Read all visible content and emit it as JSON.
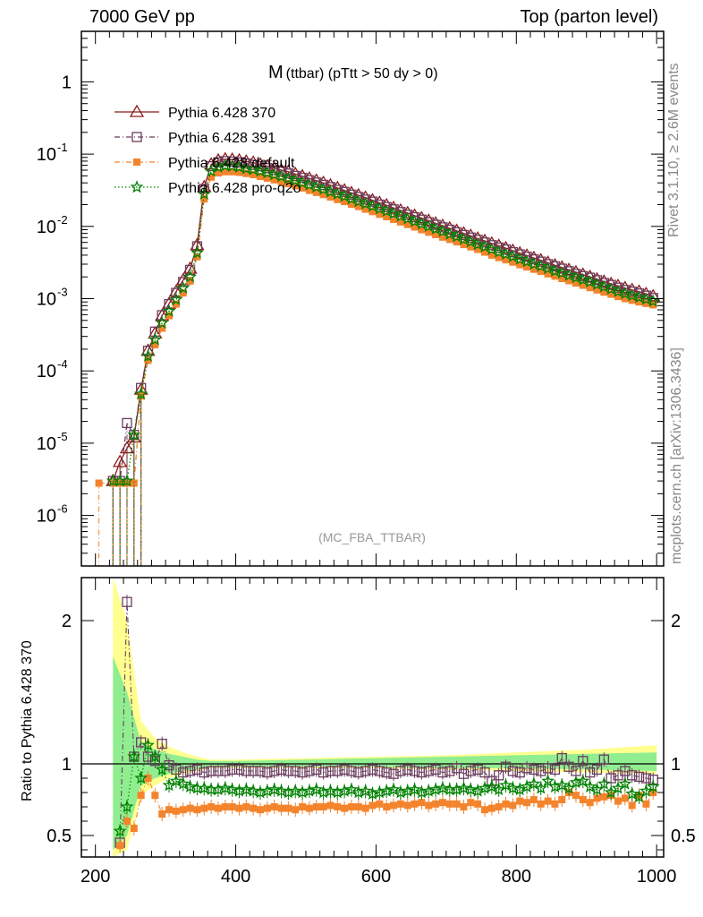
{
  "header": {
    "left": "7000 GeV pp",
    "right": "Top (parton level)"
  },
  "side_labels": {
    "rivet": "Rivet 3.1.10, ≥ 2.6M events",
    "mcplots": "mcplots.cern.ch [arXiv:1306.3436]"
  },
  "chart_data": [
    {
      "type": "line",
      "panel": "main",
      "title": "M",
      "title_sub": "(ttbar) (pTtt > 50 dy > 0)",
      "watermark": "(MC_FBA_TTBAR)",
      "xlim": [
        180,
        1010
      ],
      "ylim": [
        2e-07,
        5
      ],
      "yscale": "log",
      "ytick_labels": [
        "10^-6",
        "10^-5",
        "10^-4",
        "10^-3",
        "10^-2",
        "10^-1",
        "1"
      ],
      "legend_position": "top-left",
      "x": [
        205,
        225,
        235,
        245,
        255,
        265,
        275,
        285,
        295,
        305,
        315,
        325,
        335,
        345,
        355,
        365,
        375,
        385,
        395,
        405,
        415,
        425,
        435,
        445,
        455,
        465,
        475,
        485,
        495,
        505,
        515,
        525,
        535,
        545,
        555,
        565,
        575,
        585,
        595,
        605,
        615,
        625,
        635,
        645,
        655,
        665,
        675,
        685,
        695,
        705,
        715,
        725,
        735,
        745,
        755,
        765,
        775,
        785,
        795,
        805,
        815,
        825,
        835,
        845,
        855,
        865,
        875,
        885,
        895,
        905,
        915,
        925,
        935,
        945,
        955,
        965,
        975,
        985,
        995
      ],
      "series": [
        {
          "name": "Pythia 6.428 370",
          "color": "#8b1a1a",
          "marker": "triangle-open",
          "dash": "solid",
          "values": [
            null,
            3e-06,
            5.5e-06,
            8.5e-06,
            1.2e-05,
            5.5e-05,
            0.00019,
            0.00033,
            0.00058,
            0.00085,
            0.00125,
            0.0018,
            0.0026,
            0.0055,
            0.035,
            0.072,
            0.082,
            0.085,
            0.084,
            0.082,
            0.079,
            0.076,
            0.072,
            0.068,
            0.064,
            0.06,
            0.057,
            0.053,
            0.0495,
            0.046,
            0.043,
            0.04,
            0.037,
            0.034,
            0.0315,
            0.029,
            0.027,
            0.025,
            0.023,
            0.0212,
            0.0196,
            0.018,
            0.0166,
            0.0153,
            0.0141,
            0.013,
            0.012,
            0.011,
            0.0102,
            0.0094,
            0.0087,
            0.008,
            0.0074,
            0.0068,
            0.0063,
            0.0058,
            0.0054,
            0.005,
            0.0046,
            0.00425,
            0.00395,
            0.00365,
            0.0034,
            0.00315,
            0.0029,
            0.0027,
            0.0025,
            0.00232,
            0.00215,
            0.002,
            0.00185,
            0.00172,
            0.0016,
            0.0015,
            0.0014,
            0.00132,
            0.00125,
            0.00116,
            0.00108
          ]
        },
        {
          "name": "Pythia 6.428 391",
          "color": "#6b3e5e",
          "marker": "square-open",
          "dash": "dashdot",
          "values": [
            null,
            3e-06,
            3e-06,
            1.9e-05,
            1.3e-05,
            5.8e-05,
            0.00019,
            0.00035,
            0.00059,
            0.00084,
            0.0012,
            0.0017,
            0.0025,
            0.0053,
            0.033,
            0.068,
            0.077,
            0.08,
            0.079,
            0.077,
            0.074,
            0.071,
            0.068,
            0.064,
            0.06,
            0.057,
            0.054,
            0.05,
            0.047,
            0.0435,
            0.0405,
            0.0375,
            0.035,
            0.032,
            0.03,
            0.0275,
            0.0255,
            0.0235,
            0.022,
            0.02,
            0.0185,
            0.0172,
            0.0158,
            0.0145,
            0.0134,
            0.0124,
            0.0114,
            0.0105,
            0.0097,
            0.009,
            0.0083,
            0.0076,
            0.007,
            0.0065,
            0.006,
            0.0055,
            0.0051,
            0.0048,
            0.0044,
            0.0041,
            0.0038,
            0.0035,
            0.00325,
            0.003,
            0.0028,
            0.0026,
            0.0024,
            0.0022,
            0.00205,
            0.00195,
            0.0018,
            0.00165,
            0.00155,
            0.00142,
            0.00132,
            0.00125,
            0.00118,
            0.0011,
            0.00102
          ]
        },
        {
          "name": "Pythia 6.428 default",
          "color": "#f4842c",
          "marker": "square-filled",
          "dash": "dashdot",
          "values": [
            2.8e-06,
            2.8e-06,
            2.8e-06,
            2.8e-06,
            2.8e-06,
            4.5e-05,
            0.00014,
            0.00023,
            0.00039,
            0.00058,
            0.00084,
            0.0012,
            0.00175,
            0.0038,
            0.024,
            0.048,
            0.055,
            0.057,
            0.057,
            0.056,
            0.054,
            0.052,
            0.049,
            0.0465,
            0.044,
            0.0415,
            0.039,
            0.0365,
            0.034,
            0.0315,
            0.0295,
            0.0275,
            0.0255,
            0.0235,
            0.022,
            0.0202,
            0.0188,
            0.0173,
            0.016,
            0.0147,
            0.0136,
            0.0125,
            0.0115,
            0.0106,
            0.0098,
            0.009,
            0.0083,
            0.0077,
            0.0071,
            0.0066,
            0.0061,
            0.0056,
            0.0052,
            0.0048,
            0.0044,
            0.004,
            0.0037,
            0.00345,
            0.0032,
            0.00295,
            0.00275,
            0.00255,
            0.00238,
            0.0022,
            0.00205,
            0.0019,
            0.00177,
            0.00164,
            0.00153,
            0.00142,
            0.00132,
            0.00123,
            0.00115,
            0.00107,
            0.001,
            0.00095,
            0.0009,
            0.00086,
            0.00082
          ]
        },
        {
          "name": "Pythia 6.428 pro-q2o",
          "color": "#008000",
          "marker": "star",
          "dash": "dotted",
          "values": [
            null,
            3e-06,
            3e-06,
            3e-06,
            1.3e-05,
            4.8e-05,
            0.00016,
            0.00027,
            0.00046,
            0.00067,
            0.00097,
            0.0014,
            0.002,
            0.0043,
            0.028,
            0.058,
            0.066,
            0.069,
            0.068,
            0.066,
            0.063,
            0.061,
            0.058,
            0.055,
            0.052,
            0.049,
            0.046,
            0.043,
            0.04,
            0.0375,
            0.035,
            0.0325,
            0.03,
            0.028,
            0.026,
            0.024,
            0.022,
            0.0205,
            0.019,
            0.0175,
            0.0162,
            0.015,
            0.0138,
            0.0127,
            0.0117,
            0.0108,
            0.01,
            0.0092,
            0.0085,
            0.0078,
            0.0072,
            0.0066,
            0.0061,
            0.0056,
            0.0052,
            0.0048,
            0.0044,
            0.0041,
            0.0038,
            0.0035,
            0.00325,
            0.003,
            0.0028,
            0.0026,
            0.0024,
            0.00225,
            0.0021,
            0.00195,
            0.00182,
            0.0017,
            0.00157,
            0.00145,
            0.00135,
            0.00125,
            0.00117,
            0.0011,
            0.00104,
            0.00098,
            0.00092
          ]
        }
      ]
    },
    {
      "type": "line",
      "panel": "ratio",
      "ylabel": "Ratio to Pythia 6.428 370",
      "xlim": [
        180,
        1010
      ],
      "ylim": [
        0.35,
        2.3
      ],
      "xtick_labels": [
        "200",
        "400",
        "600",
        "800",
        "1000"
      ],
      "ytick_labels": [
        "0.5",
        "1",
        "2"
      ],
      "reference_line": 1,
      "band_yellow": {
        "x": [
          225,
          245,
          265,
          285,
          305,
          325,
          345,
          365,
          400,
          500,
          600,
          700,
          800,
          900,
          1000
        ],
        "lower": [
          0.35,
          0.4,
          0.78,
          0.85,
          0.9,
          0.93,
          0.95,
          0.97,
          0.97,
          0.97,
          0.97,
          0.96,
          0.95,
          0.94,
          0.93
        ],
        "upper": [
          2.3,
          2.0,
          1.3,
          1.18,
          1.12,
          1.08,
          1.05,
          1.03,
          1.03,
          1.04,
          1.05,
          1.06,
          1.08,
          1.1,
          1.13
        ]
      },
      "band_green": {
        "x": [
          225,
          245,
          265,
          285,
          305,
          325,
          345,
          365,
          400,
          500,
          600,
          700,
          800,
          900,
          1000
        ],
        "lower": [
          0.4,
          0.5,
          0.85,
          0.9,
          0.93,
          0.95,
          0.96,
          0.98,
          0.98,
          0.98,
          0.98,
          0.97,
          0.97,
          0.96,
          0.95
        ],
        "upper": [
          1.75,
          1.5,
          1.15,
          1.1,
          1.07,
          1.05,
          1.03,
          1.02,
          1.02,
          1.03,
          1.04,
          1.05,
          1.06,
          1.07,
          1.08
        ]
      },
      "x": [
        235,
        245,
        255,
        265,
        275,
        285,
        295,
        305,
        315,
        325,
        335,
        345,
        355,
        365,
        375,
        385,
        395,
        405,
        415,
        425,
        435,
        445,
        455,
        465,
        475,
        485,
        495,
        505,
        515,
        525,
        535,
        545,
        555,
        565,
        575,
        585,
        595,
        605,
        615,
        625,
        635,
        645,
        655,
        665,
        675,
        685,
        695,
        705,
        715,
        725,
        735,
        745,
        755,
        765,
        775,
        785,
        795,
        805,
        815,
        825,
        835,
        845,
        855,
        865,
        875,
        885,
        895,
        905,
        915,
        925,
        935,
        945,
        955,
        965,
        975,
        985,
        995
      ],
      "series": [
        {
          "name": "Pythia 6.428 391",
          "color": "#6b3e5e",
          "marker": "square-open",
          "values": [
            0.45,
            2.13,
            1.05,
            1.15,
            1.05,
            1.02,
            1.14,
            0.99,
            0.96,
            0.94,
            0.95,
            0.96,
            0.94,
            0.95,
            0.95,
            0.95,
            0.96,
            0.96,
            0.95,
            0.95,
            0.95,
            0.94,
            0.95,
            0.96,
            0.95,
            0.95,
            0.94,
            0.95,
            0.96,
            0.94,
            0.95,
            0.95,
            0.96,
            0.95,
            0.94,
            0.95,
            0.96,
            0.95,
            0.94,
            0.93,
            0.95,
            0.96,
            0.95,
            0.94,
            0.95,
            0.96,
            0.94,
            0.95,
            0.97,
            0.93,
            0.95,
            0.96,
            0.94,
            0.88,
            0.92,
            0.98,
            0.95,
            0.94,
            0.97,
            0.96,
            0.95,
            0.97,
            0.96,
            1.04,
            0.98,
            0.95,
            1.02,
            0.94,
            0.96,
            1.03,
            0.9,
            0.92,
            0.95,
            0.92,
            0.91,
            0.9,
            0.89
          ]
        },
        {
          "name": "Pythia 6.428 default",
          "color": "#f4842c",
          "marker": "square-filled",
          "values": [
            0.43,
            0.6,
            0.55,
            0.78,
            0.9,
            0.78,
            0.65,
            0.68,
            0.67,
            0.68,
            0.69,
            0.68,
            0.69,
            0.7,
            0.69,
            0.7,
            0.7,
            0.69,
            0.7,
            0.69,
            0.68,
            0.69,
            0.7,
            0.69,
            0.69,
            0.68,
            0.7,
            0.69,
            0.7,
            0.7,
            0.71,
            0.7,
            0.69,
            0.7,
            0.7,
            0.69,
            0.71,
            0.72,
            0.7,
            0.71,
            0.72,
            0.71,
            0.72,
            0.73,
            0.71,
            0.72,
            0.73,
            0.72,
            0.72,
            0.7,
            0.73,
            0.72,
            0.68,
            0.69,
            0.7,
            0.72,
            0.71,
            0.74,
            0.73,
            0.75,
            0.72,
            0.74,
            0.72,
            0.75,
            0.8,
            0.78,
            0.75,
            0.73,
            0.76,
            0.77,
            0.78,
            0.74,
            0.76,
            0.71,
            0.78,
            0.72,
            0.8
          ]
        },
        {
          "name": "Pythia 6.428 pro-q2o",
          "color": "#008000",
          "marker": "star",
          "values": [
            0.53,
            0.7,
            1.05,
            0.9,
            1.13,
            1.05,
            0.96,
            0.85,
            0.88,
            0.86,
            0.84,
            0.83,
            0.83,
            0.82,
            0.82,
            0.83,
            0.82,
            0.81,
            0.82,
            0.81,
            0.8,
            0.81,
            0.82,
            0.81,
            0.8,
            0.81,
            0.8,
            0.81,
            0.82,
            0.8,
            0.81,
            0.8,
            0.81,
            0.82,
            0.8,
            0.81,
            0.79,
            0.8,
            0.81,
            0.82,
            0.8,
            0.81,
            0.82,
            0.8,
            0.81,
            0.82,
            0.83,
            0.82,
            0.82,
            0.83,
            0.82,
            0.81,
            0.83,
            0.84,
            0.82,
            0.85,
            0.83,
            0.82,
            0.84,
            0.86,
            0.83,
            0.88,
            0.84,
            0.85,
            0.83,
            0.87,
            0.88,
            0.84,
            0.82,
            0.86,
            0.8,
            0.83,
            0.86,
            0.79,
            0.77,
            0.81,
            0.84
          ]
        }
      ]
    }
  ]
}
